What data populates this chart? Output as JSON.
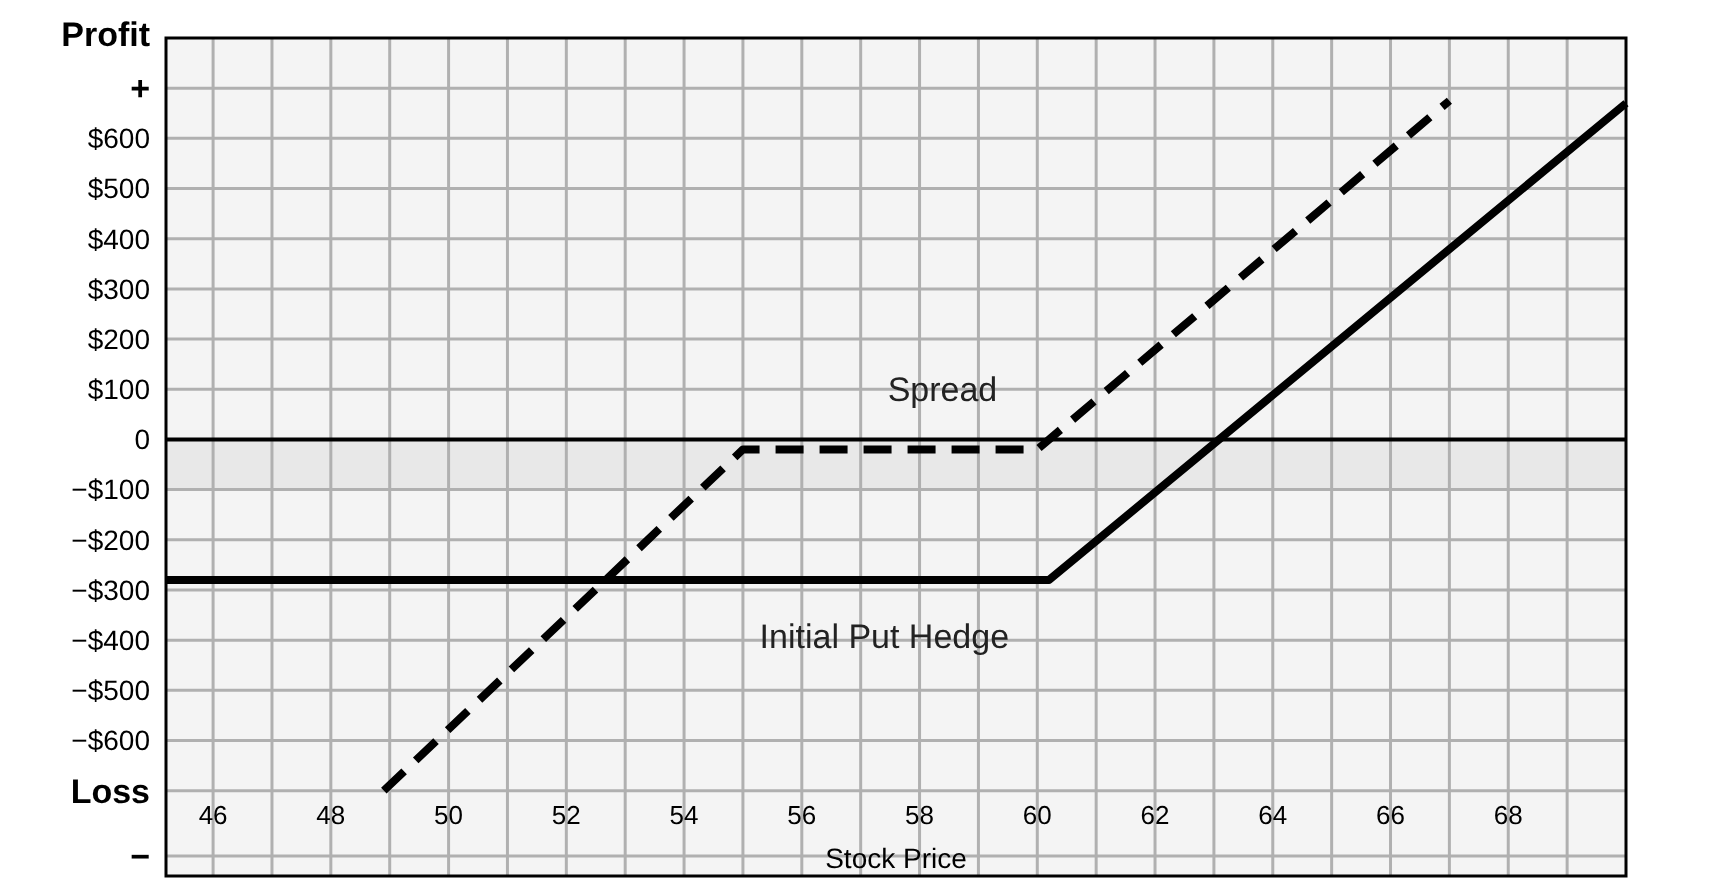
{
  "chart_data": {
    "type": "line",
    "ylabel": "Profit",
    "xlabel": "Stock Price",
    "xlim": [
      45.2,
      70
    ],
    "ylim": [
      -870,
      800
    ],
    "xticks": [
      46,
      {
        "value": 47,
        "label": null
      },
      48,
      {
        "value": 49,
        "label": null
      },
      50,
      {
        "value": 51,
        "label": null
      },
      52,
      {
        "value": 53,
        "label": null
      },
      54,
      {
        "value": 55,
        "label": null
      },
      56,
      {
        "value": 57,
        "label": null
      },
      58,
      {
        "value": 59,
        "label": null
      },
      60,
      {
        "value": 61,
        "label": null
      },
      62,
      {
        "value": 63,
        "label": null
      },
      64,
      {
        "value": 65,
        "label": null
      },
      66,
      {
        "value": 67,
        "label": null
      },
      68,
      {
        "value": 69,
        "label": null
      }
    ],
    "yticks": [
      {
        "value": 700,
        "label": "+"
      },
      {
        "value": 600,
        "label": "$600"
      },
      {
        "value": 500,
        "label": "$500"
      },
      {
        "value": 400,
        "label": "$400"
      },
      {
        "value": 300,
        "label": "$300"
      },
      {
        "value": 200,
        "label": "$200"
      },
      {
        "value": 100,
        "label": "$100"
      },
      {
        "value": 0,
        "label": "0"
      },
      {
        "value": -100,
        "label": "−$100"
      },
      {
        "value": -200,
        "label": "−$200"
      },
      {
        "value": -300,
        "label": "−$300"
      },
      {
        "value": -400,
        "label": "−$400"
      },
      {
        "value": -500,
        "label": "−$500"
      },
      {
        "value": -600,
        "label": "−$600"
      },
      {
        "value": -700,
        "label": "Loss"
      },
      {
        "value": -830,
        "label": "−"
      }
    ],
    "grid": true,
    "series": [
      {
        "name": "Initial Put Hedge",
        "color": "#000000",
        "x": [
          45.2,
          60.2,
          70
        ],
        "values": [
          -280,
          -280,
          670
        ],
        "line_style": "solid"
      },
      {
        "name": "Spread",
        "color": "#000000",
        "x": [
          48.9,
          55,
          60,
          67
        ],
        "values": [
          -700,
          -20,
          -20,
          675
        ],
        "line_style": "dashed"
      }
    ],
    "bands": [
      {
        "axis": "y",
        "from": -100,
        "to": 0,
        "color": "#e8e8e8"
      }
    ],
    "ref_lines": [
      {
        "axis": "y",
        "value": 0,
        "color": "#000000"
      }
    ]
  }
}
